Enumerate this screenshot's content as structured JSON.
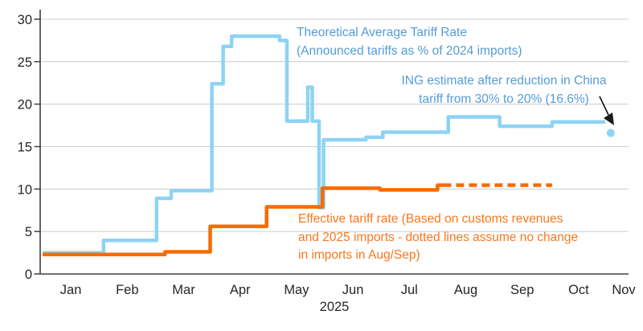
{
  "chart_data": {
    "type": "line",
    "x_axis": {
      "month_labels": [
        "Jan",
        "Feb",
        "Mar",
        "Apr",
        "May",
        "Jun",
        "Jul",
        "Aug",
        "Sep",
        "Oct",
        "Nov"
      ],
      "year_label": "2025"
    },
    "y_axis": {
      "ticks": [
        0,
        5,
        10,
        15,
        20,
        25,
        30
      ],
      "range": [
        0,
        30
      ],
      "grid": true
    },
    "colors": {
      "blue_line": "#8ED3F4",
      "blue_text": "#559CD7",
      "orange_line": "#F76B00",
      "orange_text": "#F8771E",
      "axis": "#404040",
      "gridline": "#cccccc",
      "arrow": "#1a1a1a"
    },
    "series": [
      {
        "name": "Theoretical Average Tariff Rate",
        "color_key": "blue_line",
        "style": "solid",
        "x_end": 9.97,
        "points": [
          [
            0.0,
            2.5
          ],
          [
            1.08,
            3.95
          ],
          [
            2.02,
            8.9
          ],
          [
            2.28,
            9.8
          ],
          [
            3.0,
            22.4
          ],
          [
            3.2,
            26.8
          ],
          [
            3.35,
            28.0
          ],
          [
            4.2,
            27.5
          ],
          [
            4.33,
            18.0
          ],
          [
            4.7,
            22.0
          ],
          [
            4.78,
            18.0
          ],
          [
            4.9,
            7.8
          ],
          [
            4.98,
            15.8
          ],
          [
            5.73,
            16.1
          ],
          [
            6.03,
            16.7
          ],
          [
            7.19,
            18.5
          ],
          [
            8.1,
            17.4
          ],
          [
            9.03,
            17.9
          ]
        ]
      },
      {
        "name": "Effective tariff rate (actual)",
        "color_key": "orange_line",
        "style": "solid",
        "x_end": 7.1,
        "points": [
          [
            0.0,
            2.3
          ],
          [
            2.17,
            2.6
          ],
          [
            2.97,
            5.6
          ],
          [
            3.97,
            7.9
          ],
          [
            4.96,
            10.1
          ],
          [
            5.98,
            9.9
          ],
          [
            7.0,
            10.45
          ]
        ]
      },
      {
        "name": "Effective tariff rate (dotted assumption Aug/Sep)",
        "color_key": "orange_line",
        "style": "dashed",
        "x_end": 9.03,
        "points": [
          [
            7.1,
            10.45
          ]
        ]
      }
    ],
    "marker": {
      "x": 10.07,
      "value": 16.6,
      "color_key": "blue_line",
      "meaning": "ING estimate after reduction in China tariff (16.6%)"
    },
    "annotations": {
      "theoretical": "Theoretical Average Tariff Rate\n(Announced tariffs as % of 2024 imports)",
      "ing_estimate": "ING estimate after reduction in China\ntariff from 30% to 20% (16.6%)",
      "effective": "Effective tariff rate (Based on customs revenues\nand 2025 imports - dotted lines assume no change\nin imports in Aug/Sep)"
    }
  }
}
